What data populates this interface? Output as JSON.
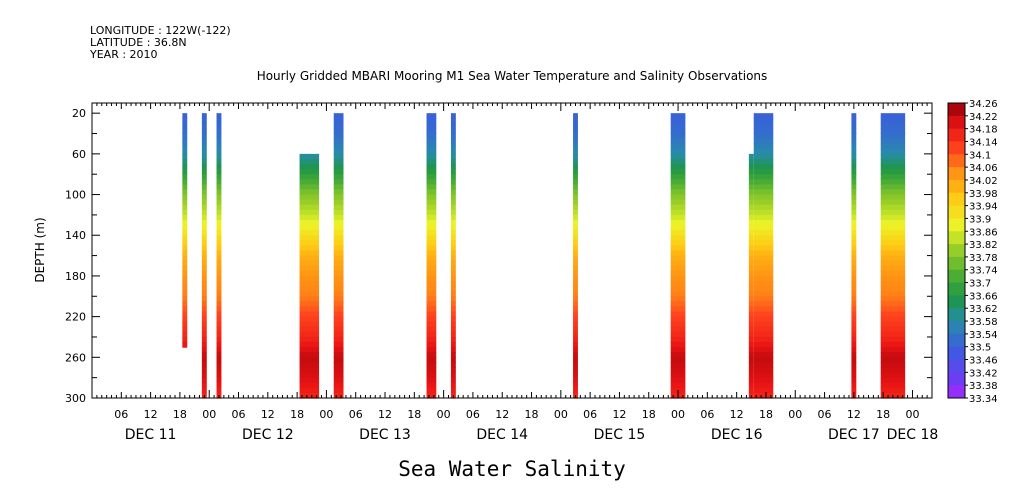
{
  "header": {
    "longitude": "LONGITUDE : 122W(-122)",
    "latitude": "LATITUDE : 36.8N",
    "year": "YEAR : 2010"
  },
  "chart_data": {
    "type": "heatmap",
    "title": "Hourly Gridded MBARI Mooring M1 Sea Water Temperature and Salinity Observations",
    "xlabel": "Sea Water Salinity",
    "ylabel": "DEPTH (m)",
    "ylim": [
      300,
      10
    ],
    "yticks": [
      20,
      60,
      100,
      140,
      180,
      220,
      260,
      300
    ],
    "xaxis_hours_range": [
      0,
      172
    ],
    "xticks": [
      {
        "h": 6,
        "label": "06"
      },
      {
        "h": 12,
        "label": "12"
      },
      {
        "h": 18,
        "label": "18"
      },
      {
        "h": 24,
        "label": "00"
      },
      {
        "h": 30,
        "label": "06"
      },
      {
        "h": 36,
        "label": "12"
      },
      {
        "h": 42,
        "label": "18"
      },
      {
        "h": 48,
        "label": "00"
      },
      {
        "h": 54,
        "label": "06"
      },
      {
        "h": 60,
        "label": "12"
      },
      {
        "h": 66,
        "label": "18"
      },
      {
        "h": 72,
        "label": "00"
      },
      {
        "h": 78,
        "label": "06"
      },
      {
        "h": 84,
        "label": "12"
      },
      {
        "h": 90,
        "label": "18"
      },
      {
        "h": 96,
        "label": "00"
      },
      {
        "h": 102,
        "label": "06"
      },
      {
        "h": 108,
        "label": "12"
      },
      {
        "h": 114,
        "label": "18"
      },
      {
        "h": 120,
        "label": "00"
      },
      {
        "h": 126,
        "label": "06"
      },
      {
        "h": 132,
        "label": "12"
      },
      {
        "h": 138,
        "label": "18"
      },
      {
        "h": 144,
        "label": "00"
      },
      {
        "h": 150,
        "label": "06"
      },
      {
        "h": 156,
        "label": "12"
      },
      {
        "h": 162,
        "label": "18"
      },
      {
        "h": 168,
        "label": "00"
      }
    ],
    "day_labels": [
      {
        "h": 12,
        "label": "DEC 11"
      },
      {
        "h": 36,
        "label": "DEC 12"
      },
      {
        "h": 60,
        "label": "DEC 13"
      },
      {
        "h": 84,
        "label": "DEC 14"
      },
      {
        "h": 108,
        "label": "DEC 15"
      },
      {
        "h": 132,
        "label": "DEC 16"
      },
      {
        "h": 156,
        "label": "DEC 17"
      },
      {
        "h": 168,
        "label": "DEC 18"
      }
    ],
    "colorbar": {
      "min": 33.34,
      "max": 34.26,
      "labels": [
        "34.26",
        "34.22",
        "34.18",
        "34.14",
        "34.1",
        "34.06",
        "34.02",
        "33.98",
        "33.94",
        "33.9",
        "33.86",
        "33.82",
        "33.78",
        "33.74",
        "33.7",
        "33.66",
        "33.62",
        "33.58",
        "33.54",
        "33.5",
        "33.46",
        "33.42",
        "33.38",
        "33.34"
      ]
    },
    "profile": [
      {
        "depth": 20,
        "value": 33.5
      },
      {
        "depth": 40,
        "value": 33.52
      },
      {
        "depth": 60,
        "value": 33.58
      },
      {
        "depth": 80,
        "value": 33.68
      },
      {
        "depth": 100,
        "value": 33.78
      },
      {
        "depth": 120,
        "value": 33.84
      },
      {
        "depth": 140,
        "value": 33.92
      },
      {
        "depth": 160,
        "value": 34.0
      },
      {
        "depth": 180,
        "value": 34.04
      },
      {
        "depth": 200,
        "value": 34.06
      },
      {
        "depth": 220,
        "value": 34.12
      },
      {
        "depth": 240,
        "value": 34.16
      },
      {
        "depth": 260,
        "value": 34.22
      },
      {
        "depth": 280,
        "value": 34.2
      },
      {
        "depth": 300,
        "value": 34.16
      }
    ],
    "segments": [
      {
        "h0": 18.5,
        "h1": 19.5,
        "dtop": 20,
        "dbot": 250
      },
      {
        "h0": 22.5,
        "h1": 23.5,
        "dtop": 20,
        "dbot": 300
      },
      {
        "h0": 25.5,
        "h1": 26.5,
        "dtop": 20,
        "dbot": 300
      },
      {
        "h0": 42.5,
        "h1": 46.5,
        "dtop": 60,
        "dbot": 300
      },
      {
        "h0": 49.5,
        "h1": 51.5,
        "dtop": 20,
        "dbot": 300
      },
      {
        "h0": 68.5,
        "h1": 70.5,
        "dtop": 20,
        "dbot": 300
      },
      {
        "h0": 73.5,
        "h1": 74.5,
        "dtop": 20,
        "dbot": 300
      },
      {
        "h0": 98.5,
        "h1": 99.5,
        "dtop": 20,
        "dbot": 300
      },
      {
        "h0": 118.5,
        "h1": 121.5,
        "dtop": 20,
        "dbot": 300
      },
      {
        "h0": 134.5,
        "h1": 135.5,
        "dtop": 60,
        "dbot": 300
      },
      {
        "h0": 135.5,
        "h1": 139.5,
        "dtop": 20,
        "dbot": 300
      },
      {
        "h0": 155.5,
        "h1": 156.5,
        "dtop": 20,
        "dbot": 300
      },
      {
        "h0": 161.5,
        "h1": 166.5,
        "dtop": 20,
        "dbot": 300
      }
    ]
  }
}
